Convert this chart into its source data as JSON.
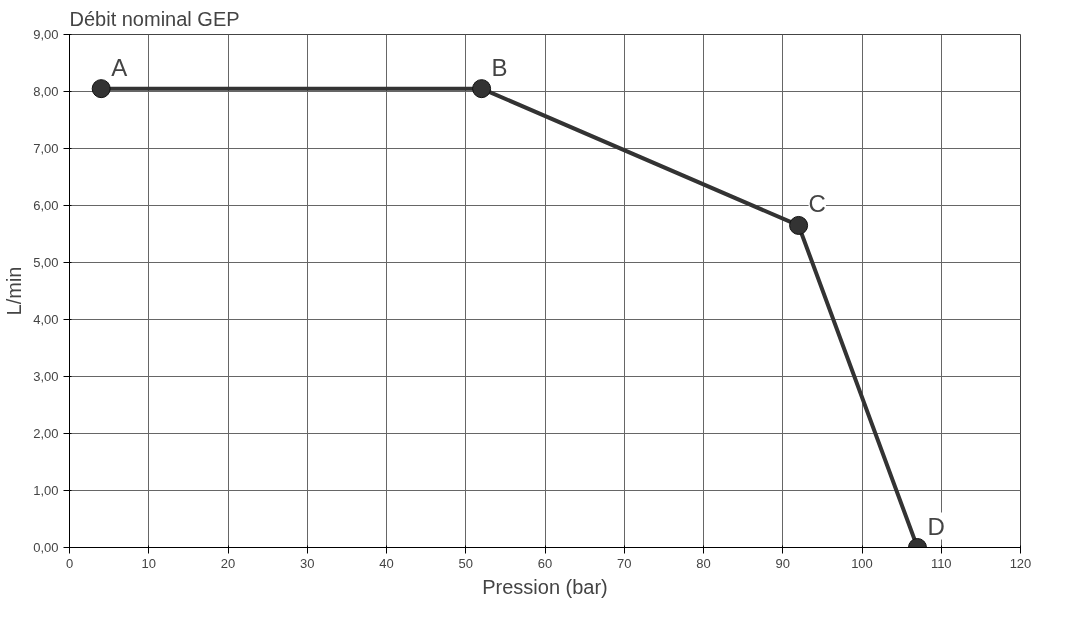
{
  "chart_data": {
    "type": "line",
    "title": "Débit nominal GEP",
    "xlabel": "Pression (bar)",
    "ylabel": "L/min",
    "x": [
      4,
      52,
      92,
      107
    ],
    "series": [
      {
        "color": "#333333",
        "values": [
          8.05,
          8.05,
          5.65,
          0
        ]
      }
    ],
    "marker": "circle",
    "line_style": "solid",
    "grid": true,
    "xlim": [
      0,
      120
    ],
    "xticks": [
      0,
      10,
      20,
      30,
      40,
      50,
      60,
      70,
      80,
      90,
      100,
      110,
      120
    ],
    "ylim": [
      0,
      9
    ],
    "yticks": [
      {
        "value": 0,
        "label": "0,00"
      },
      {
        "value": 1,
        "label": "1,00"
      },
      {
        "value": 2,
        "label": "2,00"
      },
      {
        "value": 3,
        "label": "3,00"
      },
      {
        "value": 4,
        "label": "4,00"
      },
      {
        "value": 5,
        "label": "5,00"
      },
      {
        "value": 6,
        "label": "6,00"
      },
      {
        "value": 7,
        "label": "7,00"
      },
      {
        "value": 8,
        "label": "8,00"
      },
      {
        "value": 9,
        "label": "9,00"
      }
    ],
    "annotations": [
      {
        "text": "A",
        "x": 4,
        "y": 8.05
      },
      {
        "text": "B",
        "x": 52,
        "y": 8.05
      },
      {
        "text": "C",
        "x": 92,
        "y": 5.65
      },
      {
        "text": "D",
        "x": 107,
        "y": 0
      }
    ]
  }
}
